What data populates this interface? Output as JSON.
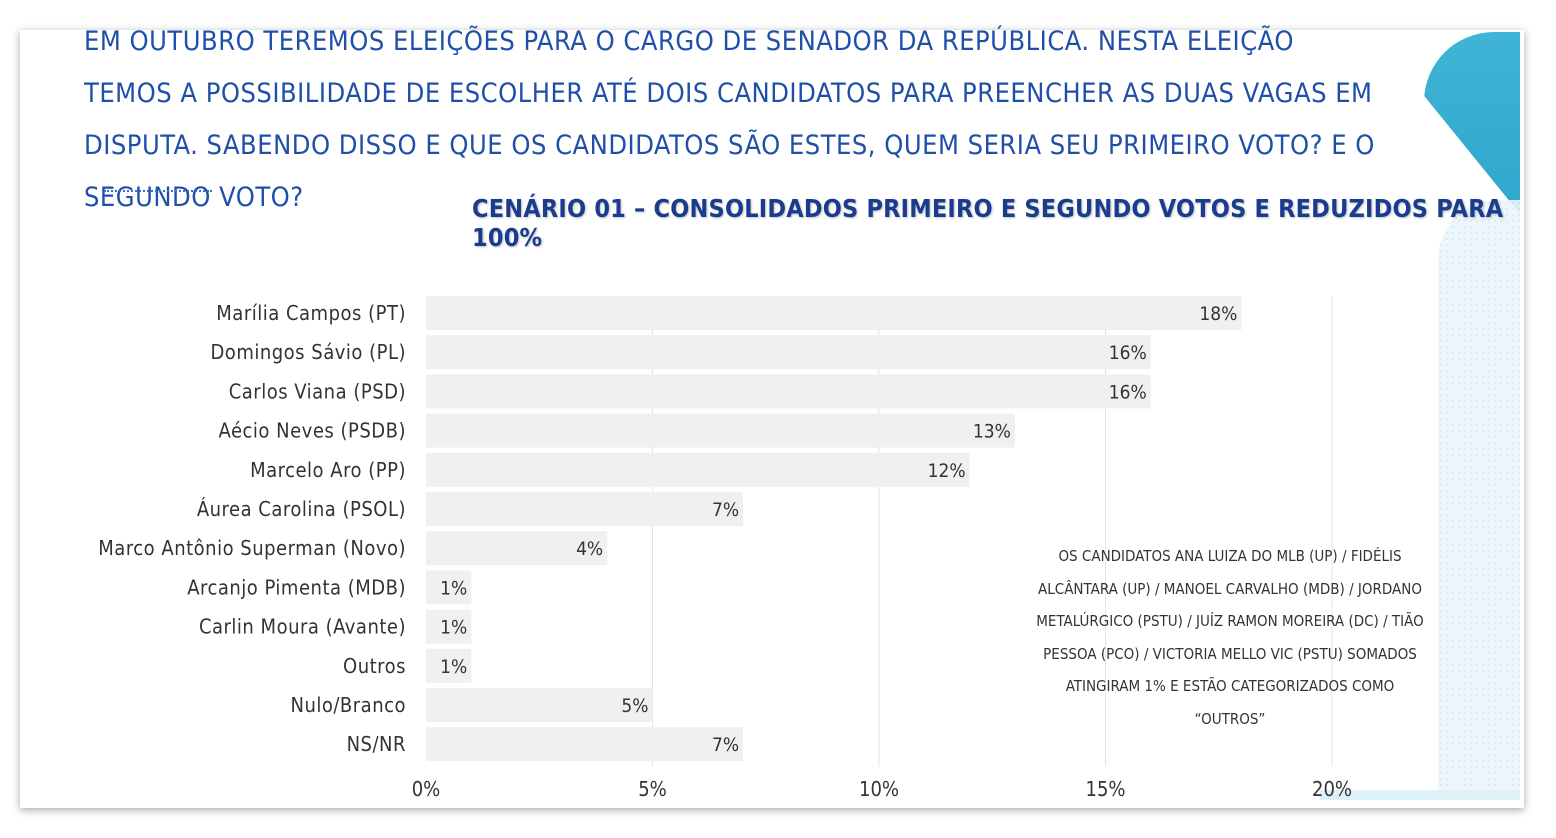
{
  "question": "EM OUTUBRO TEREMOS ELEIÇÕES PARA O CARGO DE SENADOR DA REPÚBLICA. NESTA ELEIÇÃO TEMOS A POSSIBILIDADE DE ESCOLHER ATÉ DOIS CANDIDATOS PARA PREENCHER AS DUAS VAGAS EM DISPUTA. SABENDO DISSO E QUE OS CANDIDATOS SÃO ESTES, QUEM SERIA SEU PRIMEIRO VOTO? E O SEGUNDO VOTO?",
  "note": "OS CANDIDATOS ANA LUIZA DO MLB (UP) / FIDÉLIS ALCÂNTARA (UP) / MANOEL CARVALHO (MDB) / JORDANO METALÚRGICO (PSTU) / JUÍZ RAMON MOREIRA (DC) / TIÃO PESSOA (PCO) / VICTORIA MELLO VIC (PSTU) SOMADOS ATINGIRAM 1% E ESTÃO CATEGORIZADOS COMO “OUTROS”",
  "colors": {
    "bar": "#eef0f1",
    "title": "#1a3c8f",
    "question": "#1f4fa8",
    "accent": "#3fb4d6",
    "grid": "#e4e4e4",
    "text": "#333333"
  },
  "chart_data": {
    "type": "bar",
    "orientation": "horizontal",
    "title": "CENÁRIO 01 – CONSOLIDADOS PRIMEIRO E SEGUNDO VOTOS E REDUZIDOS PARA 100%",
    "categories": [
      "Marília Campos (PT)",
      "Domingos Sávio (PL)",
      "Carlos Viana (PSD)",
      "Aécio Neves (PSDB)",
      "Marcelo Aro (PP)",
      "Áurea Carolina (PSOL)",
      "Marco Antônio Superman (Novo)",
      "Arcanjo Pimenta (MDB)",
      "Carlin Moura (Avante)",
      "Outros",
      "Nulo/Branco",
      "NS/NR"
    ],
    "values": [
      18,
      16,
      16,
      13,
      12,
      7,
      4,
      1,
      1,
      1,
      5,
      7
    ],
    "data_labels": [
      "18%",
      "16%",
      "16%",
      "13%",
      "12%",
      "7%",
      "4%",
      "1%",
      "1%",
      "1%",
      "5%",
      "7%"
    ],
    "xlim": [
      0,
      20
    ],
    "xticks": [
      0,
      5,
      10,
      15,
      20
    ],
    "xtick_labels": [
      "0%",
      "5%",
      "10%",
      "15%",
      "20%"
    ],
    "grid": true,
    "legend": "none"
  }
}
